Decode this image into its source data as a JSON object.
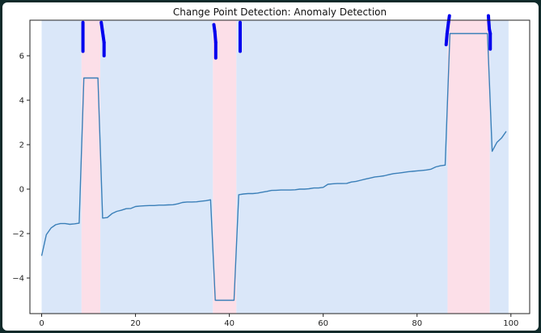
{
  "chart_data": {
    "type": "line",
    "title": "Change Point Detection: Anomaly Detection",
    "xlabel": "",
    "ylabel": "",
    "xlim": [
      -2.5,
      104
    ],
    "ylim": [
      -5.6,
      7.6
    ],
    "grid": false,
    "legend": "none",
    "x_ticks": [
      0,
      20,
      40,
      60,
      80,
      100
    ],
    "y_ticks": [
      -4,
      -2,
      0,
      2,
      4,
      6
    ],
    "series": [
      {
        "color": "#3a7fb8",
        "x": [
          0,
          1,
          2,
          3,
          4,
          5,
          6,
          7,
          8,
          9,
          10,
          11,
          12,
          13,
          14,
          15,
          16,
          17,
          18,
          19,
          20,
          21,
          22,
          23,
          24,
          25,
          26,
          27,
          28,
          29,
          30,
          31,
          32,
          33,
          34,
          35,
          36,
          37,
          38,
          39,
          40,
          41,
          42,
          43,
          44,
          45,
          46,
          47,
          48,
          49,
          50,
          51,
          52,
          53,
          54,
          55,
          56,
          57,
          58,
          59,
          60,
          61,
          62,
          63,
          64,
          65,
          66,
          67,
          68,
          69,
          70,
          71,
          72,
          73,
          74,
          75,
          76,
          77,
          78,
          79,
          80,
          81,
          82,
          83,
          84,
          85,
          86,
          87,
          88,
          89,
          90,
          91,
          92,
          93,
          94,
          95,
          96,
          97,
          98,
          99
        ],
        "y": [
          -3.0,
          -2.05,
          -1.75,
          -1.6,
          -1.55,
          -1.55,
          -1.58,
          -1.56,
          -1.53,
          5.0,
          5.0,
          5.0,
          5.0,
          -1.3,
          -1.28,
          -1.1,
          -1.0,
          -0.95,
          -0.88,
          -0.87,
          -0.78,
          -0.76,
          -0.75,
          -0.74,
          -0.74,
          -0.72,
          -0.72,
          -0.71,
          -0.7,
          -0.66,
          -0.6,
          -0.58,
          -0.58,
          -0.57,
          -0.54,
          -0.52,
          -0.48,
          -5.0,
          -5.0,
          -5.0,
          -5.0,
          -5.0,
          -0.25,
          -0.22,
          -0.2,
          -0.2,
          -0.18,
          -0.14,
          -0.1,
          -0.06,
          -0.05,
          -0.04,
          -0.04,
          -0.04,
          -0.03,
          0.0,
          0.0,
          0.02,
          0.05,
          0.05,
          0.08,
          0.22,
          0.24,
          0.25,
          0.25,
          0.26,
          0.32,
          0.35,
          0.4,
          0.45,
          0.5,
          0.55,
          0.57,
          0.6,
          0.65,
          0.7,
          0.72,
          0.75,
          0.78,
          0.8,
          0.82,
          0.84,
          0.86,
          0.9,
          1.0,
          1.05,
          1.08,
          7.0,
          7.0,
          7.0,
          7.0,
          7.0,
          7.0,
          7.0,
          7.0,
          7.0,
          1.7,
          2.1,
          2.3,
          2.6
        ]
      }
    ],
    "regions": [
      {
        "type": "normal",
        "start": 0,
        "end": 8.5,
        "color": "#d6e4f8"
      },
      {
        "type": "anomaly",
        "start": 8.5,
        "end": 12.5,
        "color": "#fcdce5"
      },
      {
        "type": "normal",
        "start": 12.5,
        "end": 36.5,
        "color": "#d6e4f8"
      },
      {
        "type": "anomaly",
        "start": 36.5,
        "end": 41.5,
        "color": "#fcdce5"
      },
      {
        "type": "normal",
        "start": 41.5,
        "end": 86.5,
        "color": "#d6e4f8"
      },
      {
        "type": "anomaly",
        "start": 86.5,
        "end": 95.5,
        "color": "#fcdce5"
      },
      {
        "type": "normal",
        "start": 95.5,
        "end": 99.5,
        "color": "#d6e4f8"
      }
    ],
    "change_point_markers": {
      "color": "#0000ee",
      "segments": [
        {
          "x1": 8.8,
          "y1": 7.5,
          "x2": 8.8,
          "y2": 6.2
        },
        {
          "x1": 12.7,
          "y1": 7.5,
          "x2": 13.1,
          "y2": 6.9
        },
        {
          "x1": 13.1,
          "y1": 6.9,
          "x2": 13.3,
          "y2": 6.6
        },
        {
          "x1": 13.3,
          "y1": 6.6,
          "x2": 13.3,
          "y2": 6.0
        },
        {
          "x1": 36.7,
          "y1": 7.4,
          "x2": 36.9,
          "y2": 7.1
        },
        {
          "x1": 36.9,
          "y1": 7.1,
          "x2": 37.1,
          "y2": 6.6
        },
        {
          "x1": 37.1,
          "y1": 6.6,
          "x2": 37.1,
          "y2": 5.9
        },
        {
          "x1": 42.3,
          "y1": 7.5,
          "x2": 42.3,
          "y2": 6.2
        },
        {
          "x1": 86.2,
          "y1": 6.5,
          "x2": 86.4,
          "y2": 7.0
        },
        {
          "x1": 86.4,
          "y1": 7.0,
          "x2": 86.7,
          "y2": 7.5
        },
        {
          "x1": 86.7,
          "y1": 7.5,
          "x2": 86.9,
          "y2": 7.8
        },
        {
          "x1": 95.2,
          "y1": 7.8,
          "x2": 95.4,
          "y2": 7.2
        },
        {
          "x1": 95.4,
          "y1": 7.2,
          "x2": 95.6,
          "y2": 7.0
        },
        {
          "x1": 95.6,
          "y1": 7.0,
          "x2": 95.6,
          "y2": 6.3
        }
      ]
    }
  }
}
